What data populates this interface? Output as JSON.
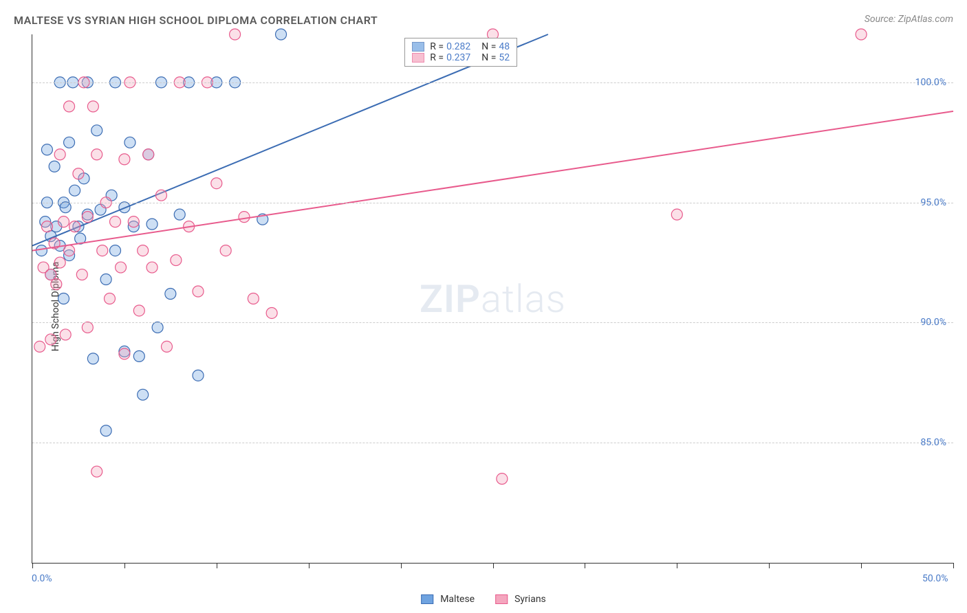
{
  "title": "MALTESE VS SYRIAN HIGH SCHOOL DIPLOMA CORRELATION CHART",
  "source": "Source: ZipAtlas.com",
  "yaxis_label": "High School Diploma",
  "watermark_zip": "ZIP",
  "watermark_atlas": "atlas",
  "chart": {
    "type": "scatter",
    "background_color": "#ffffff",
    "grid_color": "#cccccc",
    "axis_color": "#333333",
    "xlim": [
      0,
      50
    ],
    "ylim": [
      80,
      102
    ],
    "xticks": [
      0,
      5,
      10,
      15,
      20,
      25,
      30,
      35,
      40,
      45,
      50
    ],
    "xtick_labels": {
      "0": "0.0%",
      "50": "50.0%"
    },
    "yticks": [
      85,
      90,
      95,
      100
    ],
    "ytick_labels": {
      "85": "85.0%",
      "90": "90.0%",
      "95": "95.0%",
      "100": "100.0%"
    },
    "marker_radius": 8,
    "marker_fill_opacity": 0.35,
    "marker_stroke_width": 1.2,
    "line_width": 2,
    "series": [
      {
        "name": "Maltese",
        "color_fill": "#6fa3e0",
        "color_stroke": "#3b6cb3",
        "R": "0.282",
        "N": "48",
        "trend": {
          "x1": 0,
          "y1": 93.2,
          "x2": 28,
          "y2": 102
        },
        "points": [
          [
            0.5,
            93.0
          ],
          [
            0.7,
            94.2
          ],
          [
            0.8,
            95.0
          ],
          [
            0.8,
            97.2
          ],
          [
            1.0,
            93.6
          ],
          [
            1.0,
            92.0
          ],
          [
            1.2,
            96.5
          ],
          [
            1.3,
            94.0
          ],
          [
            1.5,
            100.0
          ],
          [
            1.5,
            93.2
          ],
          [
            1.7,
            95.0
          ],
          [
            1.7,
            91.0
          ],
          [
            1.8,
            94.8
          ],
          [
            2.0,
            97.5
          ],
          [
            2.0,
            92.8
          ],
          [
            2.2,
            100.0
          ],
          [
            2.3,
            95.5
          ],
          [
            2.5,
            94.0
          ],
          [
            2.6,
            93.5
          ],
          [
            2.8,
            96.0
          ],
          [
            3.0,
            100.0
          ],
          [
            3.0,
            94.5
          ],
          [
            3.3,
            88.5
          ],
          [
            3.5,
            98.0
          ],
          [
            3.7,
            94.7
          ],
          [
            4.0,
            91.8
          ],
          [
            4.0,
            85.5
          ],
          [
            4.3,
            95.3
          ],
          [
            4.5,
            100.0
          ],
          [
            4.5,
            93.0
          ],
          [
            5.0,
            88.8
          ],
          [
            5.3,
            97.5
          ],
          [
            5.5,
            94.0
          ],
          [
            5.8,
            88.6
          ],
          [
            6.0,
            87.0
          ],
          [
            6.3,
            97.0
          ],
          [
            6.5,
            94.1
          ],
          [
            6.8,
            89.8
          ],
          [
            7.0,
            100.0
          ],
          [
            7.5,
            91.2
          ],
          [
            8.0,
            94.5
          ],
          [
            8.5,
            100.0
          ],
          [
            9.0,
            87.8
          ],
          [
            10.0,
            100.0
          ],
          [
            11.0,
            100.0
          ],
          [
            12.5,
            94.3
          ],
          [
            13.5,
            102.0
          ],
          [
            5.0,
            94.8
          ]
        ]
      },
      {
        "name": "Syrians",
        "color_fill": "#f4a6be",
        "color_stroke": "#e85a8c",
        "R": "0.237",
        "N": "52",
        "trend": {
          "x1": 0,
          "y1": 93.0,
          "x2": 50,
          "y2": 98.8
        },
        "points": [
          [
            0.4,
            89.0
          ],
          [
            0.6,
            92.3
          ],
          [
            0.8,
            94.0
          ],
          [
            1.0,
            92.0
          ],
          [
            1.0,
            89.3
          ],
          [
            1.2,
            93.3
          ],
          [
            1.3,
            91.6
          ],
          [
            1.5,
            97.0
          ],
          [
            1.5,
            92.5
          ],
          [
            1.7,
            94.2
          ],
          [
            1.8,
            89.5
          ],
          [
            2.0,
            93.0
          ],
          [
            2.0,
            99.0
          ],
          [
            2.3,
            94.0
          ],
          [
            2.5,
            96.2
          ],
          [
            2.7,
            92.0
          ],
          [
            2.8,
            100.0
          ],
          [
            3.0,
            89.8
          ],
          [
            3.0,
            94.4
          ],
          [
            3.3,
            99.0
          ],
          [
            3.5,
            97.0
          ],
          [
            3.5,
            83.8
          ],
          [
            3.8,
            93.0
          ],
          [
            4.0,
            95.0
          ],
          [
            4.2,
            91.0
          ],
          [
            4.5,
            94.2
          ],
          [
            4.8,
            92.3
          ],
          [
            5.0,
            96.8
          ],
          [
            5.0,
            88.7
          ],
          [
            5.3,
            100.0
          ],
          [
            5.5,
            94.2
          ],
          [
            5.8,
            90.5
          ],
          [
            6.0,
            93.0
          ],
          [
            6.3,
            97.0
          ],
          [
            6.5,
            92.3
          ],
          [
            7.0,
            95.3
          ],
          [
            7.3,
            89.0
          ],
          [
            7.8,
            92.6
          ],
          [
            8.0,
            100.0
          ],
          [
            8.5,
            94.0
          ],
          [
            9.0,
            91.3
          ],
          [
            9.5,
            100.0
          ],
          [
            10.0,
            95.8
          ],
          [
            10.5,
            93.0
          ],
          [
            11.0,
            102.0
          ],
          [
            11.5,
            94.4
          ],
          [
            12.0,
            91.0
          ],
          [
            13.0,
            90.4
          ],
          [
            25.0,
            102.0
          ],
          [
            25.5,
            83.5
          ],
          [
            35.0,
            94.5
          ],
          [
            45.0,
            102.0
          ]
        ]
      }
    ]
  },
  "stats_legend": {
    "R_label": "R =",
    "N_label": "N ="
  },
  "colors": {
    "tick_label": "#4a7bc8",
    "title": "#5a5a5a",
    "source": "#888888"
  }
}
